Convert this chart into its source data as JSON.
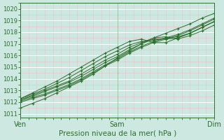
{
  "title": "Pression niveau de la mer( hPa )",
  "ylabel_ticks": [
    1011,
    1012,
    1013,
    1014,
    1015,
    1016,
    1017,
    1018,
    1019,
    1020
  ],
  "ylim": [
    1010.7,
    1020.5
  ],
  "xlim": [
    0,
    48
  ],
  "xtick_positions": [
    0,
    24,
    48
  ],
  "xtick_labels": [
    "Ven",
    "Sam",
    "Dim"
  ],
  "background_color": "#cce8e0",
  "grid_major_color": "#ffffff",
  "grid_minor_color": "#e8c8c8",
  "line_color": "#2d6e2d",
  "marker": "+",
  "lines": [
    {
      "x": [
        0,
        3,
        6,
        9,
        12,
        15,
        18,
        21,
        24,
        27,
        30,
        33,
        36,
        39,
        42,
        45,
        48
      ],
      "y": [
        1011.5,
        1011.9,
        1012.3,
        1012.8,
        1013.3,
        1013.8,
        1014.4,
        1015.1,
        1015.8,
        1016.4,
        1017.0,
        1017.5,
        1017.9,
        1018.3,
        1018.7,
        1019.2,
        1019.6
      ]
    },
    {
      "x": [
        0,
        3,
        6,
        9,
        12,
        15,
        18,
        21,
        24,
        27,
        30,
        33,
        36,
        39,
        42,
        45,
        48
      ],
      "y": [
        1012.0,
        1012.3,
        1012.6,
        1013.0,
        1013.4,
        1013.9,
        1014.5,
        1015.1,
        1015.6,
        1016.2,
        1016.7,
        1017.1,
        1017.4,
        1017.7,
        1018.1,
        1018.6,
        1019.1
      ]
    },
    {
      "x": [
        0,
        3,
        6,
        9,
        12,
        15,
        18,
        21,
        24,
        27,
        30,
        33,
        36,
        39,
        42,
        45,
        48
      ],
      "y": [
        1012.1,
        1012.4,
        1012.7,
        1013.1,
        1013.5,
        1014.0,
        1014.6,
        1015.2,
        1015.7,
        1016.3,
        1016.8,
        1017.2,
        1017.5,
        1017.8,
        1018.2,
        1018.7,
        1019.2
      ]
    },
    {
      "x": [
        0,
        3,
        6,
        9,
        12,
        15,
        18,
        21,
        24,
        27,
        30,
        33,
        36,
        39,
        42,
        45,
        48
      ],
      "y": [
        1012.2,
        1012.5,
        1012.9,
        1013.3,
        1013.7,
        1014.2,
        1014.8,
        1015.4,
        1015.9,
        1016.5,
        1017.0,
        1017.4,
        1017.4,
        1017.5,
        1017.9,
        1018.4,
        1018.9
      ]
    },
    {
      "x": [
        0,
        3,
        6,
        9,
        12,
        15,
        18,
        21,
        24,
        27,
        30,
        33,
        36,
        39,
        42,
        45,
        48
      ],
      "y": [
        1012.2,
        1012.6,
        1013.0,
        1013.4,
        1013.8,
        1014.4,
        1015.0,
        1015.6,
        1016.1,
        1016.7,
        1017.1,
        1017.5,
        1017.6,
        1017.4,
        1017.7,
        1018.1,
        1018.6
      ]
    },
    {
      "x": [
        0,
        3,
        6,
        9,
        12,
        15,
        18,
        21,
        24,
        27,
        30,
        33,
        36,
        39,
        42,
        45,
        48
      ],
      "y": [
        1012.3,
        1012.7,
        1013.1,
        1013.6,
        1014.1,
        1014.7,
        1015.3,
        1015.9,
        1016.4,
        1016.9,
        1017.2,
        1017.3,
        1017.5,
        1017.6,
        1017.9,
        1018.4,
        1018.9
      ]
    },
    {
      "x": [
        0,
        3,
        6,
        9,
        12,
        15,
        18,
        21,
        24,
        27,
        30,
        33,
        36,
        39,
        42,
        45,
        48
      ],
      "y": [
        1012.3,
        1012.8,
        1013.3,
        1013.8,
        1014.4,
        1015.0,
        1015.6,
        1016.2,
        1016.7,
        1017.2,
        1017.4,
        1017.1,
        1017.1,
        1017.5,
        1017.9,
        1018.4,
        1018.9
      ]
    }
  ]
}
